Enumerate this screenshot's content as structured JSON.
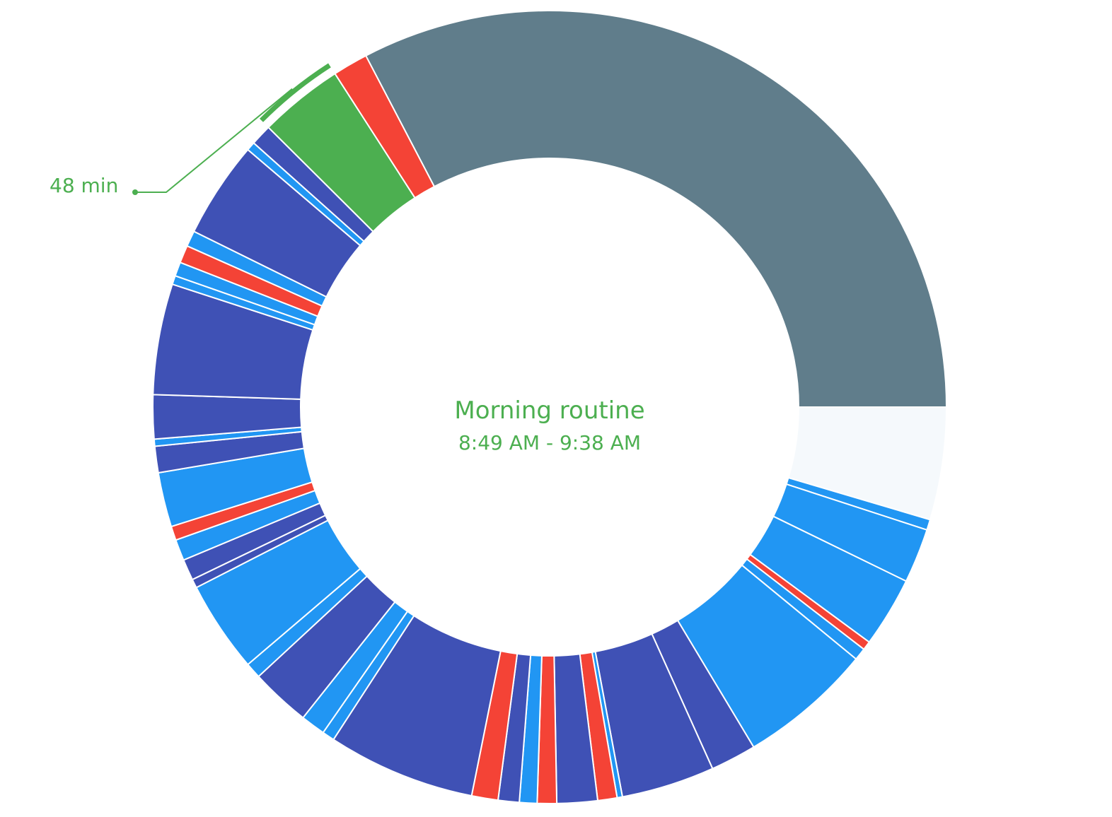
{
  "chart_data": {
    "type": "donut",
    "unit": "min",
    "colors": {
      "idle": "#607d8b",
      "red": "#f44336",
      "green": "#4caf50",
      "indigo": "#3f51b5",
      "blue": "#2196f3",
      "empty": "#f5f9fc",
      "separator": "#ffffff"
    },
    "segments": [
      {
        "category": "idle",
        "minutes": 456
      },
      {
        "category": "empty",
        "minutes": 64
      },
      {
        "category": "blue",
        "minutes": 6
      },
      {
        "category": "blue",
        "minutes": 31
      },
      {
        "category": "blue",
        "minutes": 40
      },
      {
        "category": "red",
        "minutes": 5
      },
      {
        "category": "blue",
        "minutes": 7
      },
      {
        "category": "blue",
        "minutes": 76
      },
      {
        "category": "indigo",
        "minutes": 26
      },
      {
        "category": "indigo",
        "minutes": 53
      },
      {
        "category": "blue",
        "minutes": 3
      },
      {
        "category": "red",
        "minutes": 11
      },
      {
        "category": "indigo",
        "minutes": 23
      },
      {
        "category": "red",
        "minutes": 11
      },
      {
        "category": "blue",
        "minutes": 10
      },
      {
        "category": "indigo",
        "minutes": 12
      },
      {
        "category": "red",
        "minutes": 15
      },
      {
        "category": "indigo",
        "minutes": 84
      },
      {
        "category": "blue",
        "minutes": 7
      },
      {
        "category": "blue",
        "minutes": 14
      },
      {
        "category": "indigo",
        "minutes": 34
      },
      {
        "category": "blue",
        "minutes": 9
      },
      {
        "category": "blue",
        "minutes": 52
      },
      {
        "category": "indigo",
        "minutes": 5
      },
      {
        "category": "indigo",
        "minutes": 12
      },
      {
        "category": "blue",
        "minutes": 12
      },
      {
        "category": "red",
        "minutes": 8
      },
      {
        "category": "blue",
        "minutes": 31
      },
      {
        "category": "indigo",
        "minutes": 15
      },
      {
        "category": "blue",
        "minutes": 4
      },
      {
        "category": "indigo",
        "minutes": 25
      },
      {
        "category": "indigo",
        "minutes": 63
      },
      {
        "category": "blue",
        "minutes": 5
      },
      {
        "category": "blue",
        "minutes": 8
      },
      {
        "category": "red",
        "minutes": 10
      },
      {
        "category": "blue",
        "minutes": 9
      },
      {
        "category": "indigo",
        "minutes": 55
      },
      {
        "category": "blue",
        "minutes": 5
      },
      {
        "category": "indigo",
        "minutes": 12
      },
      {
        "category": "green",
        "minutes": 48,
        "label": "Morning routine",
        "time_range": "8:49 AM - 9:38 AM",
        "highlighted": true
      },
      {
        "category": "red",
        "minutes": 20
      }
    ]
  },
  "center": {
    "title": "Morning routine",
    "subtitle": "8:49 AM - 9:38 AM"
  },
  "callout": {
    "text": "48 min"
  }
}
